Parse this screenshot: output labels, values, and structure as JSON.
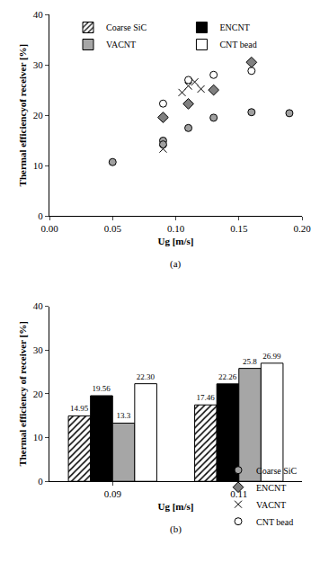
{
  "chart_data": [
    {
      "type": "scatter",
      "title": "(a)",
      "xlabel": "Ug [m/s]",
      "ylabel": "Thermal efficiencyof receiver [%]",
      "xlim": [
        0,
        0.2
      ],
      "xticks": [
        {
          "value": 0,
          "label": "0.00"
        },
        0.05,
        {
          "value": 0.1,
          "label": "0.10"
        },
        0.15,
        {
          "value": 0.2,
          "label": "0.20"
        }
      ],
      "ylim": [
        0,
        40
      ],
      "yticks": [
        0,
        10,
        20,
        30,
        40
      ],
      "grid": false,
      "legend": "lower right",
      "series": [
        {
          "name": "Coarse SiC",
          "color": "#a0a0a0",
          "marker": "circle",
          "x": [
            0.05,
            0.09,
            0.09,
            0.11,
            0.13,
            0.16,
            0.19
          ],
          "values": [
            10.7,
            14.95,
            14.2,
            17.46,
            19.5,
            20.6,
            20.4
          ]
        },
        {
          "name": "ENCNT",
          "color": "#808080",
          "marker": "diamond",
          "x": [
            0.09,
            0.11,
            0.13,
            0.16
          ],
          "values": [
            19.56,
            22.26,
            25.0,
            30.5
          ]
        },
        {
          "name": "VACNT",
          "color": "#000000",
          "marker": "x-thin-open",
          "x": [
            0.09,
            0.105,
            0.11,
            0.115,
            0.12
          ],
          "values": [
            13.3,
            24.5,
            25.8,
            26.6,
            25.2
          ]
        },
        {
          "name": "CNT bead",
          "color": "#000000",
          "marker": "circle-open",
          "x": [
            0.09,
            0.11,
            0.13,
            0.16
          ],
          "values": [
            22.3,
            26.99,
            28.0,
            28.8
          ]
        }
      ]
    },
    {
      "type": "bar",
      "title": "(b)",
      "xlabel": "Ug [m/s]",
      "ylabel": "Thermal efficiency of receiver [%]",
      "categories": [
        "0.09",
        "0.11"
      ],
      "ylim": [
        0,
        40
      ],
      "yticks": [
        0,
        10,
        20,
        30,
        40
      ],
      "grid": false,
      "legend": "upper right",
      "data_labels": true,
      "series": [
        {
          "name": "Coarse SiC",
          "color": "#ffffff",
          "marker": "hatched",
          "values": [
            14.95,
            17.46
          ]
        },
        {
          "name": "ENCNT",
          "color": "#000000",
          "values": [
            19.56,
            22.26
          ]
        },
        {
          "name": "VACNT",
          "color": "#a6a6a6",
          "values": [
            13.3,
            25.8
          ]
        },
        {
          "name": "CNT bead",
          "color": "#ffffff",
          "values": [
            22.3,
            26.99
          ],
          "value_labels": [
            "22.30",
            "26.99"
          ]
        }
      ]
    }
  ]
}
